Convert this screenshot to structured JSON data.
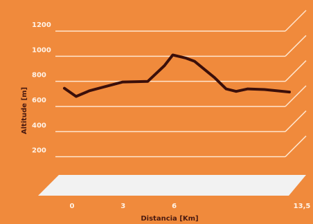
{
  "chart_data": {
    "type": "line",
    "xlabel": "Distancia [Km]",
    "ylabel": "Altitude [m]",
    "ylim": [
      0,
      1200
    ],
    "yticks": [
      "200",
      "400",
      "600",
      "800",
      "1000",
      "1200"
    ],
    "ytick_values": [
      200,
      400,
      600,
      800,
      1000,
      1200
    ],
    "xlim": [
      0,
      13.5
    ],
    "xticks": [
      "0",
      "3",
      "6",
      "13,5"
    ],
    "xtick_values": [
      0,
      3,
      6,
      13.5
    ],
    "grid": true,
    "series": [
      {
        "x": [
          0,
          0.7,
          1.5,
          2.5,
          3.5,
          5.0,
          6.0,
          6.5,
          7.3,
          7.8,
          9.0,
          9.7,
          10.3,
          11.0,
          12.0,
          13.5
        ],
        "y": [
          745,
          680,
          725,
          760,
          795,
          800,
          925,
          1010,
          985,
          960,
          830,
          740,
          720,
          740,
          735,
          715
        ]
      }
    ],
    "colors": {
      "background": "#F08A3C",
      "grid": "#FFE6CF",
      "line": "#3B0F0A",
      "floor": "#F2F2F2",
      "tick_text": "#FFF3E7",
      "title_text": "#4A1A10"
    }
  }
}
